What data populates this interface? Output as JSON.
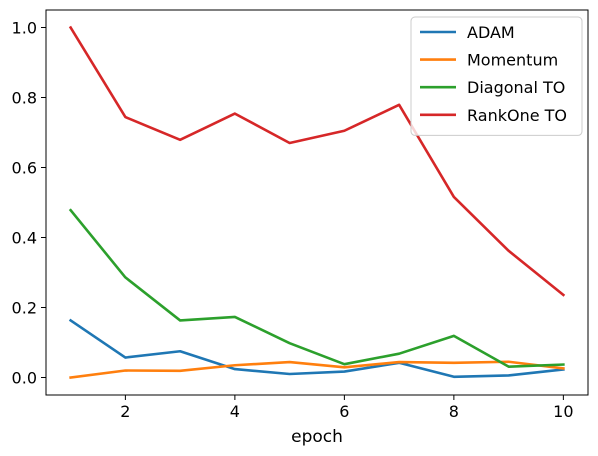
{
  "chart_data": {
    "type": "line",
    "x": [
      1,
      2,
      3,
      4,
      5,
      6,
      7,
      8,
      9,
      10
    ],
    "xlabel": "epoch",
    "ylabel": "",
    "xlim": [
      0.55,
      10.45
    ],
    "ylim": [
      -0.05,
      1.05
    ],
    "xticks": [
      2,
      4,
      6,
      8,
      10
    ],
    "yticks": [
      0.0,
      0.2,
      0.4,
      0.6,
      0.8,
      1.0
    ],
    "xtick_labels": [
      "2",
      "4",
      "6",
      "8",
      "10"
    ],
    "ytick_labels": [
      "0.0",
      "0.2",
      "0.4",
      "0.6",
      "0.8",
      "1.0"
    ],
    "grid": false,
    "legend_position": "top-right",
    "series": [
      {
        "name": "ADAM",
        "color": "#1f77b4",
        "values": [
          0.163,
          0.057,
          0.075,
          0.024,
          0.01,
          0.017,
          0.042,
          0.002,
          0.006,
          0.023
        ]
      },
      {
        "name": "Momentum",
        "color": "#ff7f0e",
        "values": [
          0.0,
          0.02,
          0.019,
          0.035,
          0.044,
          0.029,
          0.044,
          0.042,
          0.045,
          0.026
        ]
      },
      {
        "name": "Diagonal TO",
        "color": "#2ca02c",
        "values": [
          0.478,
          0.286,
          0.163,
          0.173,
          0.098,
          0.038,
          0.068,
          0.119,
          0.031,
          0.037
        ]
      },
      {
        "name": "RankOne TO",
        "color": "#d62728",
        "values": [
          1.0,
          0.744,
          0.679,
          0.754,
          0.67,
          0.705,
          0.779,
          0.516,
          0.362,
          0.236
        ]
      }
    ]
  }
}
